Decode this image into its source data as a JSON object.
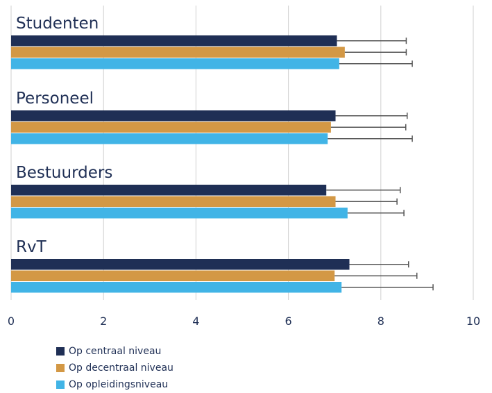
{
  "chart_data": {
    "type": "bar",
    "orientation": "horizontal",
    "title": "",
    "xlabel": "",
    "ylabel": "",
    "xlim": [
      0,
      10
    ],
    "x_ticks": [
      "0",
      "2",
      "4",
      "6",
      "8",
      "10"
    ],
    "grid": true,
    "legend_position": "bottom-left",
    "categories": [
      "Studenten",
      "Personeel",
      "Bestuurders",
      "RvT"
    ],
    "series": [
      {
        "name": "Op centraal niveau",
        "color": "#1f2f55",
        "values": [
          7.05,
          7.02,
          6.82,
          7.32
        ],
        "error_upper": [
          8.55,
          8.57,
          8.42,
          8.6
        ]
      },
      {
        "name": "Op decentraal niveau",
        "color": "#d39845",
        "values": [
          7.22,
          6.92,
          7.02,
          7.0
        ],
        "error_upper": [
          8.55,
          8.54,
          8.35,
          8.78
        ]
      },
      {
        "name": "Op opleidingsniveau",
        "color": "#41b4e6",
        "values": [
          7.1,
          6.85,
          7.28,
          7.15
        ],
        "error_upper": [
          8.68,
          8.68,
          8.5,
          9.13
        ]
      }
    ]
  }
}
